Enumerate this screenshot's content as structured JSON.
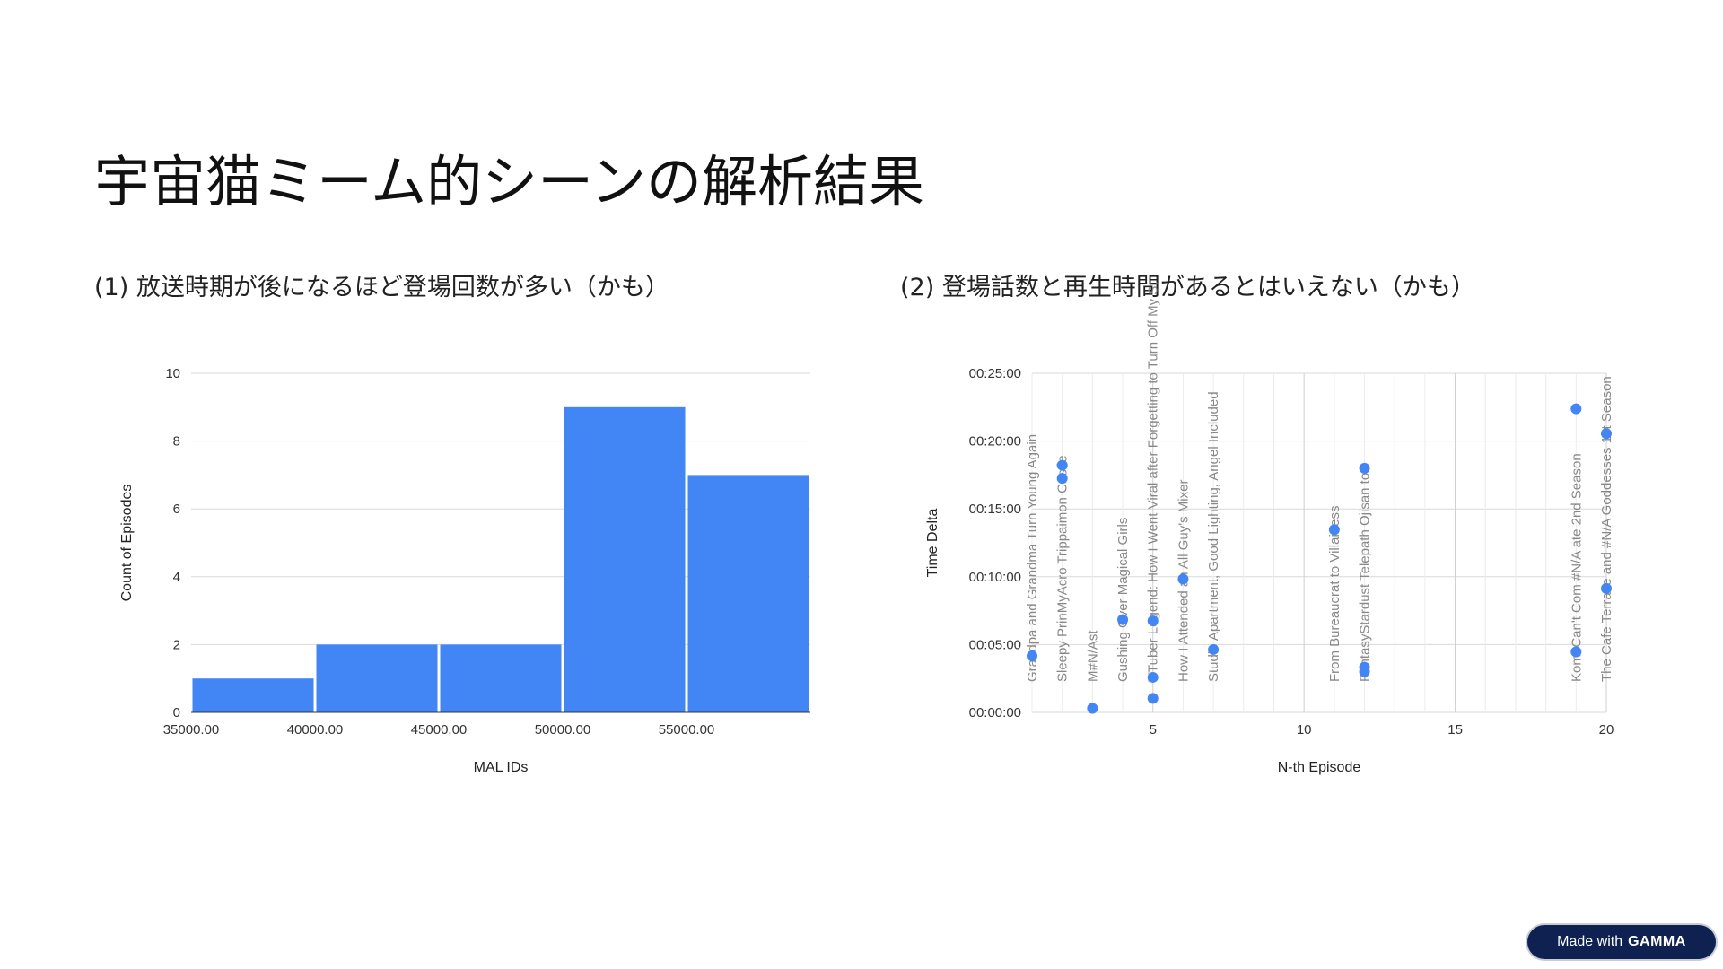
{
  "slide": {
    "title": "宇宙猫ミーム的シーンの解析結果",
    "subtitle_left": "(1) 放送時期が後になるほど登場回数が多い（かも）",
    "subtitle_right": "(2) 登場話数と再生時間があるとはいえない（かも）"
  },
  "badge": {
    "prefix": "Made with",
    "brand": "GAMMA"
  },
  "colors": {
    "bar": "#4285f4",
    "point": "#4285f4",
    "grid": "#d9d9d9",
    "badge_bg": "#0f2150"
  },
  "chart_data": [
    {
      "type": "bar",
      "title": "",
      "xlabel": "MAL IDs",
      "ylabel": "Count of Episodes",
      "bins": [
        {
          "start": 35000,
          "end": 40000,
          "value": 1
        },
        {
          "start": 40000,
          "end": 45000,
          "value": 2
        },
        {
          "start": 45000,
          "end": 50000,
          "value": 2
        },
        {
          "start": 50000,
          "end": 55000,
          "value": 9
        },
        {
          "start": 55000,
          "end": 60000,
          "value": 7
        }
      ],
      "x_ticks": [
        "35000.00",
        "40000.00",
        "45000.00",
        "50000.00",
        "55000.00"
      ],
      "x_tick_values": [
        35000,
        40000,
        45000,
        50000,
        55000
      ],
      "xlim": [
        35000,
        60000
      ],
      "ylim": [
        0,
        10
      ],
      "y_ticks": [
        0,
        2,
        4,
        6,
        8,
        10
      ],
      "grid": true,
      "legend": "none"
    },
    {
      "type": "scatter",
      "title": "",
      "xlabel": "N-th Episode",
      "ylabel": "Time Delta",
      "xlim": [
        1,
        20
      ],
      "x_ticks": [
        5,
        10,
        15,
        20
      ],
      "ylim": [
        0,
        1500
      ],
      "y_ticks": [
        0,
        300,
        600,
        900,
        1200,
        1500
      ],
      "y_tick_labels": [
        "00:00:00",
        "00:05:00",
        "00:10:00",
        "00:15:00",
        "00:20:00",
        "00:25:00"
      ],
      "grid": true,
      "legend": "none",
      "points": [
        {
          "x": 1,
          "y": 250
        },
        {
          "x": 2,
          "y": 1093
        },
        {
          "x": 2,
          "y": 1035
        },
        {
          "x": 3,
          "y": 18
        },
        {
          "x": 4,
          "y": 410
        },
        {
          "x": 5,
          "y": 405
        },
        {
          "x": 5,
          "y": 155
        },
        {
          "x": 5,
          "y": 62
        },
        {
          "x": 6,
          "y": 590
        },
        {
          "x": 7,
          "y": 278
        },
        {
          "x": 11,
          "y": 808
        },
        {
          "x": 12,
          "y": 1080
        },
        {
          "x": 12,
          "y": 200
        },
        {
          "x": 12,
          "y": 180
        },
        {
          "x": 19,
          "y": 1343
        },
        {
          "x": 19,
          "y": 268
        },
        {
          "x": 20,
          "y": 1233
        },
        {
          "x": 20,
          "y": 548
        }
      ],
      "point_labels": [
        {
          "x": 1,
          "text": "Grandpa and Grandma Turn Young Again"
        },
        {
          "x": 2,
          "text": "Sleepy PrinMyAcro Trippaimon Castle"
        },
        {
          "x": 3,
          "text": "M#N/Ast"
        },
        {
          "x": 4,
          "text": "Gushing Over Magical Girls"
        },
        {
          "x": 5,
          "text": "VTuber Legend: How I Went Viral after Forgetting to Turn Off My St"
        },
        {
          "x": 6,
          "text": "How I Attended an All Guy's Mixer"
        },
        {
          "x": 7,
          "text": "Studio Apartment, Good Lighting, Angel Included"
        },
        {
          "x": 11,
          "text": "From Bureaucrat to Villainess"
        },
        {
          "x": 12,
          "text": "FantasyStardust Telepath Ojisan to"
        },
        {
          "x": 19,
          "text": "Komi Can't Com #N/A ate 2nd Season"
        },
        {
          "x": 20,
          "text": "The Cafe Terrace and #N/A Goddesses 1st Season"
        }
      ]
    }
  ]
}
